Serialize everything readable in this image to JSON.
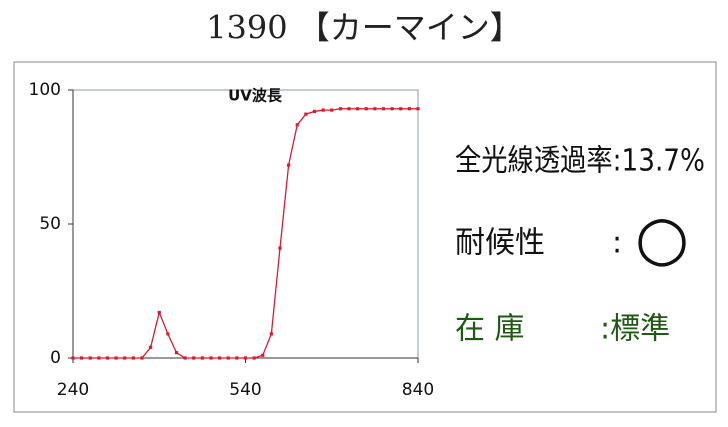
{
  "header": {
    "title": "1390 【カーマイン】"
  },
  "chart_data": {
    "type": "line",
    "title": "UV波長",
    "x": [
      240,
      255,
      270,
      285,
      300,
      315,
      330,
      345,
      360,
      375,
      390,
      405,
      420,
      435,
      450,
      465,
      480,
      495,
      510,
      525,
      540,
      555,
      570,
      585,
      600,
      615,
      630,
      645,
      660,
      675,
      690,
      705,
      720,
      735,
      750,
      765,
      780,
      795,
      810,
      825,
      840
    ],
    "series": [
      {
        "name": "透過率",
        "color": "#e0182d",
        "values": [
          0,
          0,
          0,
          0,
          0,
          0,
          0,
          0,
          0,
          4,
          17,
          9,
          2,
          0,
          0,
          0,
          0,
          0,
          0,
          0,
          0,
          0,
          1,
          9,
          41,
          72,
          87,
          91,
          92,
          92.5,
          92.5,
          93,
          93,
          93,
          93,
          93,
          93,
          93,
          93,
          93,
          93
        ]
      }
    ],
    "xlim": [
      240,
      840
    ],
    "xticks": [
      240,
      540,
      840
    ],
    "ylim": [
      0,
      100
    ],
    "yticks": [
      0,
      50,
      100
    ]
  },
  "info": {
    "transmittance": "全光線透過率:13.7%",
    "weather_label": "耐候性",
    "weather_sep": ":",
    "weather_value": "○",
    "stock_label": "在 庫",
    "stock_value": ":標準"
  }
}
